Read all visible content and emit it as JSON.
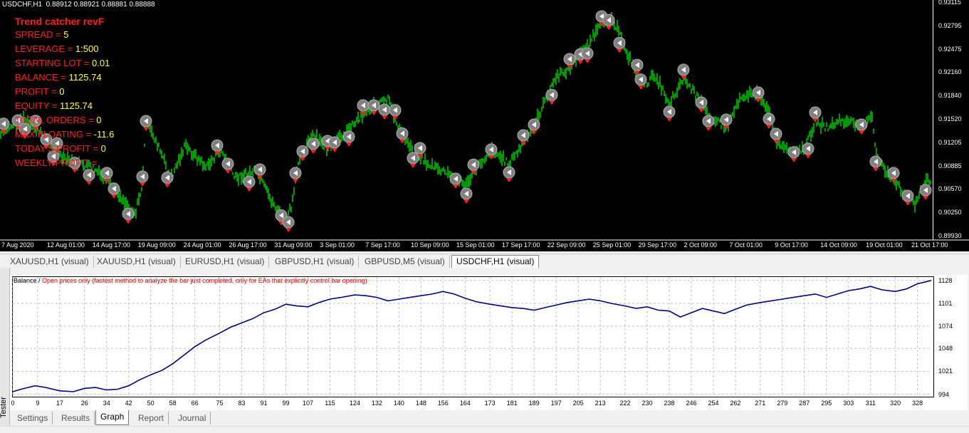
{
  "chart": {
    "symbol_header": "USDCHF,H1  0.88912 0.88921 0.88881 0.88888",
    "ea_title": "Trend catcher revF",
    "ea_lines": [
      {
        "label": "SPREAD = ",
        "value": "5"
      },
      {
        "label": "LEVERAGE = ",
        "value": "1:500"
      },
      {
        "label": "STARTING LOT = ",
        "value": "0.01"
      },
      {
        "label": "BALANCE = ",
        "value": "1125.74"
      },
      {
        "label": "PROFIT = ",
        "value": "0"
      },
      {
        "label": "EQUITY = ",
        "value": "1125.74"
      },
      {
        "label": "TOTAL ORDERS = ",
        "value": "0"
      },
      {
        "label": "MAX FLOATING = ",
        "value": "-11.6"
      },
      {
        "label": "TODAY'S PROFIT = ",
        "value": "0"
      },
      {
        "label": "WEEKLY PROFIT = ",
        "value": ""
      }
    ],
    "price_axis": [
      "0.93115",
      "0.92795",
      "0.92475",
      "0.92160",
      "0.91840",
      "0.91520",
      "0.91205",
      "0.90885",
      "0.90570",
      "0.90250",
      "0.89930"
    ],
    "time_axis": [
      "7 Aug 2020",
      "12 Aug 01:00",
      "14 Aug 17:00",
      "19 Aug 09:00",
      "24 Aug 01:00",
      "26 Aug 17:00",
      "31 Aug 09:00",
      "3 Sep 01:00",
      "7 Sep 17:00",
      "10 Sep 09:00",
      "15 Sep 01:00",
      "17 Sep 17:00",
      "22 Sep 09:00",
      "25 Sep 01:00",
      "29 Sep 17:00",
      "2 Oct 09:00",
      "7 Oct 01:00",
      "9 Oct 17:00",
      "14 Oct 09:00",
      "19 Oct 01:00",
      "21 Oct 17:00"
    ],
    "colors": {
      "background": "#000000",
      "candles": "#00ff00",
      "label": "#ff1e1e",
      "value": "#ffff33"
    }
  },
  "symbol_tabs": [
    {
      "label": "XAUUSD,H1 (visual)"
    },
    {
      "label": "XAUUSD,H1 (visual)"
    },
    {
      "label": "EURUSD,H1 (visual)"
    },
    {
      "label": "GBPUSD,H1 (visual)"
    },
    {
      "label": "GBPUSD,M5 (visual)"
    },
    {
      "label": "USDCHF,H1 (visual)",
      "active": true
    }
  ],
  "tester": {
    "side_label": "Tester",
    "legend_name": "Balance",
    "legend_sep": " / ",
    "legend_desc": "Open prices only (fastest method to analyze the bar just completed, only for EAs that explicitly control bar opening)",
    "tabs": [
      "Settings",
      "Results",
      "Graph",
      "Report",
      "Journal"
    ],
    "active_tab": "Graph"
  },
  "chart_data": {
    "type": "line",
    "title": "",
    "xlabel": "",
    "ylabel": "",
    "x_ticks": [
      0,
      9,
      17,
      26,
      34,
      42,
      50,
      58,
      66,
      75,
      83,
      91,
      99,
      107,
      115,
      124,
      132,
      140,
      148,
      156,
      164,
      173,
      181,
      189,
      197,
      205,
      213,
      222,
      230,
      238,
      246,
      254,
      262,
      271,
      279,
      287,
      295,
      303,
      311,
      320,
      328
    ],
    "y_ticks": [
      994,
      1021,
      1048,
      1074,
      1101,
      1128
    ],
    "xlim": [
      0,
      333
    ],
    "ylim": [
      992,
      1132
    ],
    "grid": true,
    "series": [
      {
        "color": "#00008b",
        "x": [
          0,
          3,
          8,
          12,
          17,
          22,
          26,
          30,
          34,
          38,
          42,
          46,
          50,
          54,
          58,
          62,
          66,
          70,
          75,
          79,
          83,
          87,
          91,
          95,
          99,
          103,
          107,
          111,
          115,
          119,
          124,
          128,
          132,
          136,
          140,
          144,
          148,
          152,
          156,
          160,
          164,
          168,
          173,
          177,
          181,
          185,
          189,
          193,
          197,
          201,
          205,
          209,
          213,
          217,
          222,
          226,
          230,
          234,
          238,
          242,
          246,
          250,
          254,
          258,
          262,
          266,
          271,
          275,
          279,
          283,
          287,
          291,
          295,
          299,
          303,
          307,
          311,
          315,
          320,
          324,
          328,
          333
        ],
        "y": [
          997,
          1000,
          1004,
          1002,
          998,
          997,
          1001,
          1002,
          999,
          1000,
          1004,
          1011,
          1017,
          1022,
          1030,
          1040,
          1050,
          1058,
          1066,
          1073,
          1078,
          1083,
          1090,
          1094,
          1100,
          1098,
          1097,
          1102,
          1106,
          1108,
          1111,
          1110,
          1108,
          1104,
          1106,
          1108,
          1110,
          1112,
          1115,
          1112,
          1107,
          1103,
          1100,
          1098,
          1096,
          1095,
          1093,
          1096,
          1099,
          1102,
          1104,
          1106,
          1104,
          1101,
          1098,
          1095,
          1097,
          1093,
          1092,
          1085,
          1090,
          1095,
          1092,
          1089,
          1094,
          1099,
          1102,
          1104,
          1106,
          1108,
          1110,
          1112,
          1108,
          1112,
          1116,
          1118,
          1121,
          1117,
          1115,
          1118,
          1124,
          1128
        ]
      }
    ]
  }
}
